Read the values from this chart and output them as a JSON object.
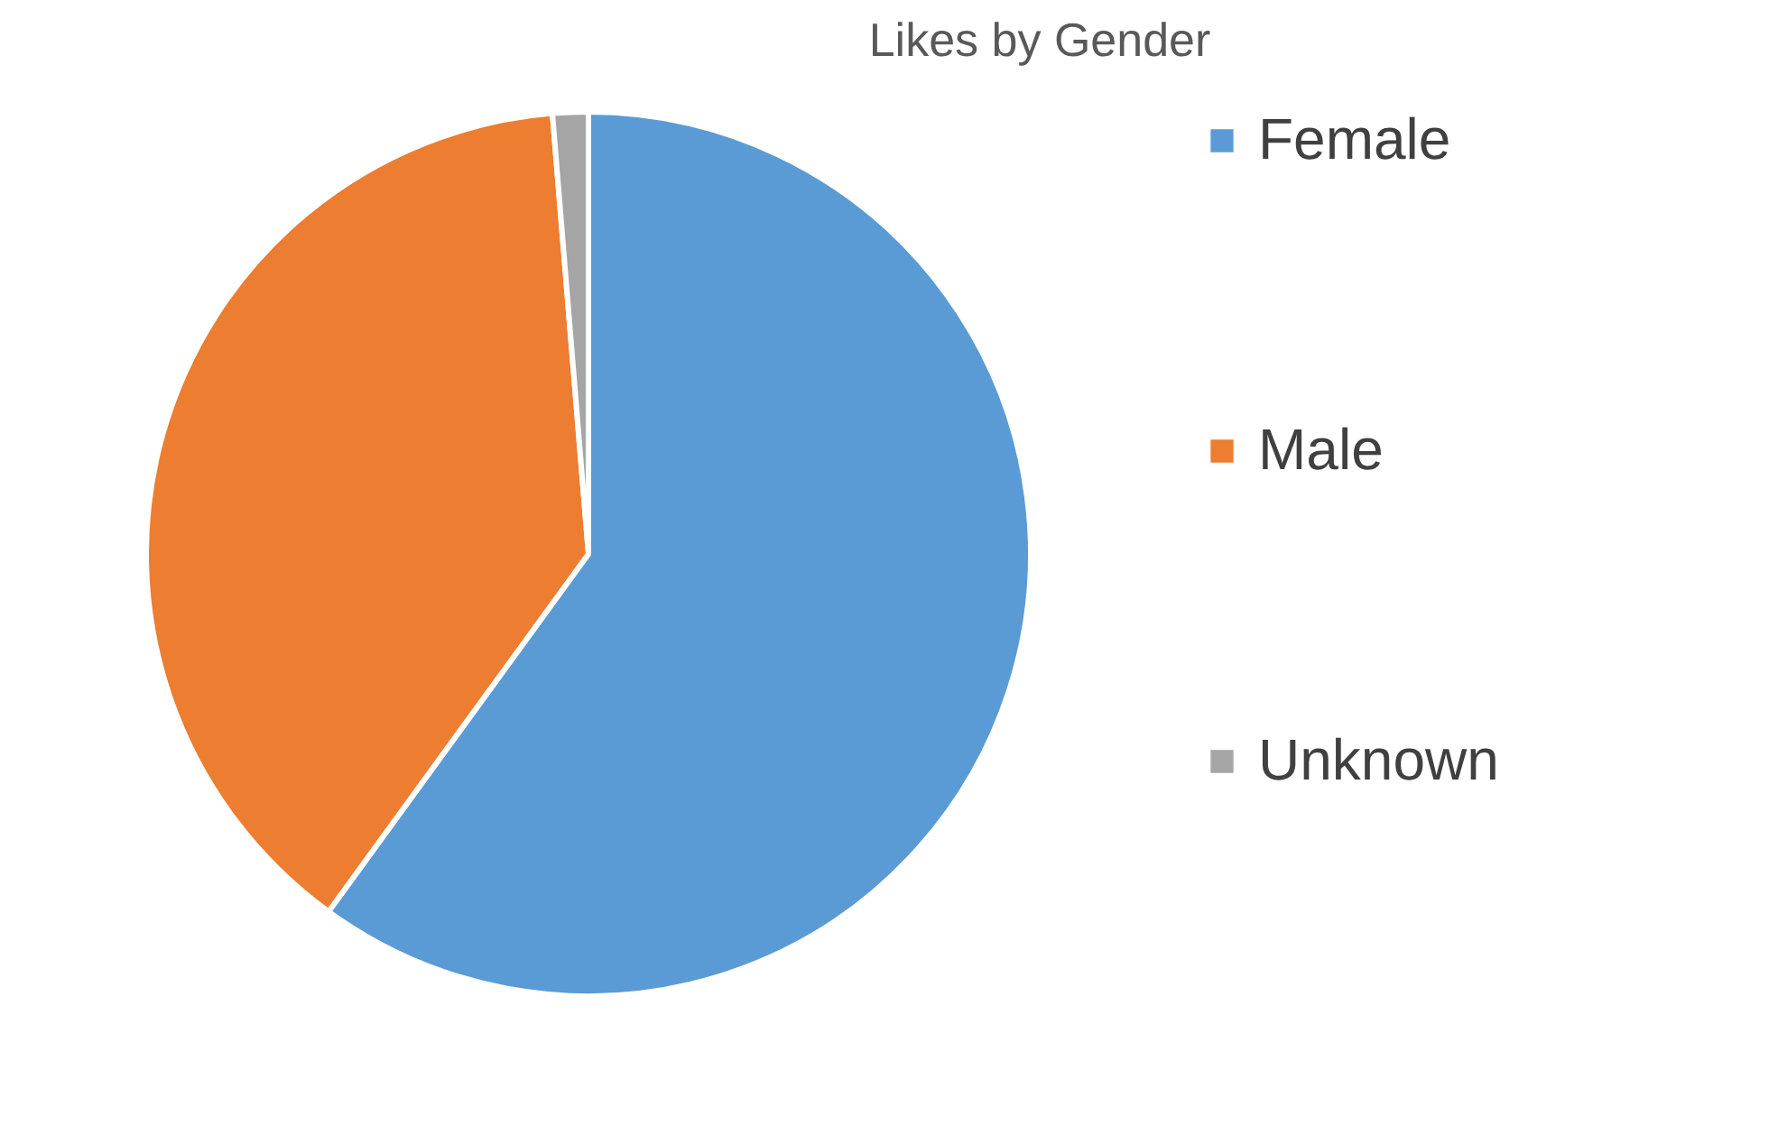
{
  "chart_data": {
    "type": "pie",
    "title": "Likes by Gender",
    "categories": [
      "Female",
      "Male",
      "Unknown"
    ],
    "values": [
      60,
      38.7,
      1.3
    ],
    "colors": [
      "#5b9bd5",
      "#ed7d31",
      "#a5a5a5"
    ],
    "legend": "right"
  }
}
